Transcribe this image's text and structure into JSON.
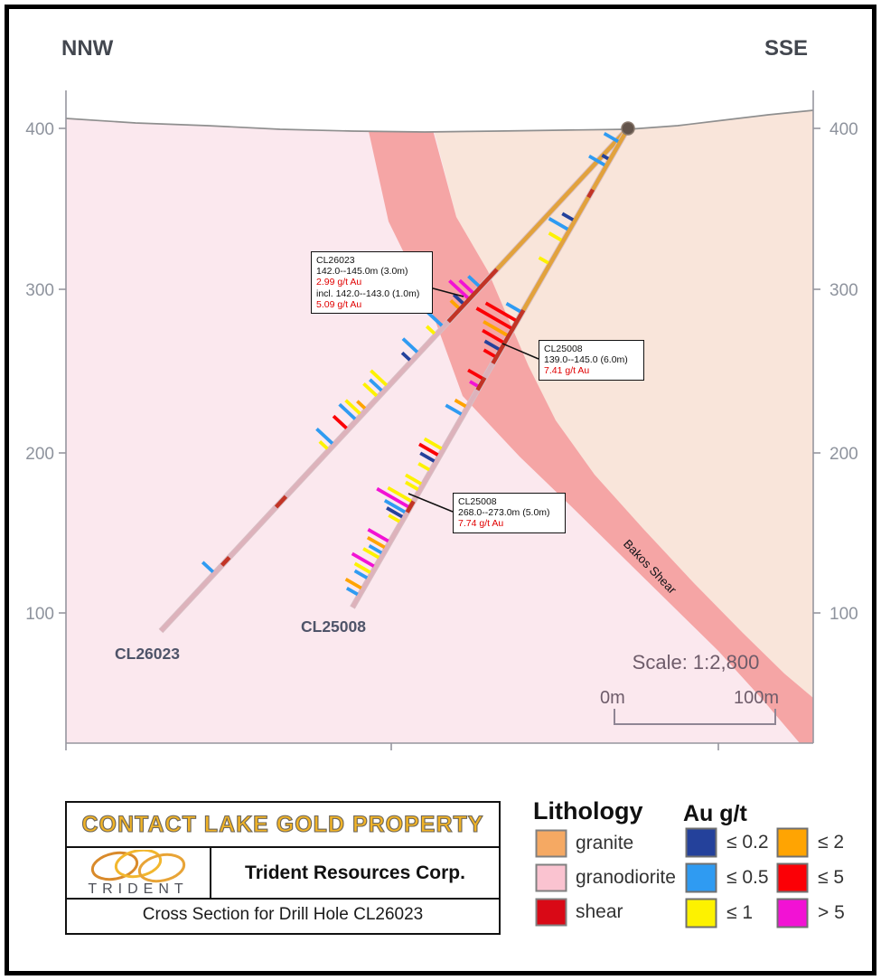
{
  "orientation": {
    "left": "NNW",
    "right": "SSE"
  },
  "axis": {
    "ticks": [
      "400",
      "300",
      "200",
      "100"
    ]
  },
  "scalebar": {
    "label": "Scale: 1:2,800",
    "left": "0m",
    "right": "100m"
  },
  "shear_label": "Bakos Shear",
  "colors": {
    "au": {
      "02": "#24419B",
      "05": "#2F9BF2",
      "1": "#FDF200",
      "2": "#FFA402",
      "5": "#FB0006",
      "5p": "#F212D4"
    },
    "lith_trace": {
      "granite": "#E2A23C",
      "granodiorite": "#DDB2BB",
      "shear": "#C23426"
    },
    "lith_bg": {
      "granite": "#F9E5DA",
      "granodiorite": "#FBE8EE",
      "shear_band": "#F5A5A5"
    },
    "annotation_red": "#E00000",
    "title_gold": "#F2B426"
  },
  "section": {
    "holes": [
      {
        "id": "CL26023",
        "collar": [
          695,
          142
        ],
        "end": [
          178,
          698
        ],
        "segments": [
          {
            "s0": 0,
            "s1": 213,
            "lith": "granite"
          },
          {
            "s0": 213,
            "s1": 292,
            "lith": "shear"
          },
          {
            "s0": 292,
            "s1": 556,
            "lith": "granodiorite"
          },
          {
            "s0": 556,
            "s1": 572,
            "lith": "shear"
          },
          {
            "s0": 572,
            "s1": 648,
            "lith": "granodiorite"
          },
          {
            "s0": 648,
            "s1": 660,
            "lith": "shear"
          },
          {
            "s0": 660,
            "s1": 759,
            "lith": "granodiorite"
          }
        ],
        "ticks": [
          [
            240,
            18,
            "05"
          ],
          [
            250,
            22,
            "5p"
          ],
          [
            258,
            30,
            "5p"
          ],
          [
            266,
            16,
            "02"
          ],
          [
            273,
            14,
            "2"
          ],
          [
            300,
            28,
            "05"
          ],
          [
            312,
            14,
            "1"
          ],
          [
            340,
            24,
            "05"
          ],
          [
            352,
            14,
            "02"
          ],
          [
            390,
            26,
            "1"
          ],
          [
            398,
            20,
            "05"
          ],
          [
            406,
            22,
            "1"
          ],
          [
            425,
            14,
            "2"
          ],
          [
            433,
            24,
            "1"
          ],
          [
            441,
            26,
            "05"
          ],
          [
            455,
            22,
            "5"
          ],
          [
            478,
            26,
            "05"
          ],
          [
            486,
            14,
            "1"
          ],
          [
            672,
            18,
            "05"
          ]
        ]
      },
      {
        "id": "CL25008",
        "collar": [
          695,
          142
        ],
        "end": [
          390,
          672
        ],
        "segments": [
          {
            "s0": 0,
            "s1": 78,
            "lith": "granite"
          },
          {
            "s0": 78,
            "s1": 88,
            "lith": "shear"
          },
          {
            "s0": 88,
            "s1": 232,
            "lith": "granite"
          },
          {
            "s0": 232,
            "s1": 300,
            "lith": "shear"
          },
          {
            "s0": 300,
            "s1": 318,
            "lith": "granodiorite"
          },
          {
            "s0": 318,
            "s1": 334,
            "lith": "shear"
          },
          {
            "s0": 334,
            "s1": 476,
            "lith": "granodiorite"
          },
          {
            "s0": 476,
            "s1": 490,
            "lith": "shear"
          },
          {
            "s0": 490,
            "s1": 611,
            "lith": "granodiorite"
          }
        ],
        "ticks": [
          [
            18,
            20,
            "05"
          ],
          [
            40,
            10,
            "02"
          ],
          [
            48,
            22,
            "05"
          ],
          [
            118,
            16,
            "02"
          ],
          [
            130,
            26,
            "05"
          ],
          [
            144,
            18,
            "1"
          ],
          [
            173,
            14,
            "1"
          ],
          [
            235,
            20,
            "05"
          ],
          [
            246,
            40,
            "5"
          ],
          [
            256,
            46,
            "5"
          ],
          [
            265,
            32,
            "2"
          ],
          [
            274,
            28,
            "5"
          ],
          [
            283,
            20,
            "02"
          ],
          [
            292,
            16,
            "5"
          ],
          [
            320,
            20,
            "5"
          ],
          [
            330,
            12,
            "5p"
          ],
          [
            356,
            16,
            "2"
          ],
          [
            366,
            22,
            "05"
          ],
          [
            410,
            24,
            "1"
          ],
          [
            418,
            26,
            "5"
          ],
          [
            426,
            20,
            "02"
          ],
          [
            437,
            16,
            "1"
          ],
          [
            455,
            22,
            "1"
          ],
          [
            462,
            18,
            "1"
          ],
          [
            477,
            32,
            "1"
          ],
          [
            484,
            42,
            "5p"
          ],
          [
            491,
            28,
            "05"
          ],
          [
            497,
            22,
            "02"
          ],
          [
            503,
            16,
            "1"
          ],
          [
            528,
            28,
            "5p"
          ],
          [
            536,
            24,
            "2"
          ],
          [
            543,
            18,
            "05"
          ],
          [
            549,
            22,
            "1"
          ],
          [
            560,
            30,
            "5p"
          ],
          [
            568,
            22,
            "1"
          ],
          [
            575,
            18,
            "05"
          ],
          [
            588,
            22,
            "2"
          ],
          [
            596,
            16,
            "05"
          ]
        ]
      }
    ],
    "hole_labels": [
      "CL26023",
      "CL25008"
    ]
  },
  "callouts": [
    {
      "lines": [
        "CL26023",
        "142.0--145.0m (3.0m)",
        "2.99 g/t Au",
        "incl. 142.0--143.0 (1.0m)",
        "5.09 g/t Au"
      ]
    },
    {
      "lines": [
        "CL25008",
        "139.0--145.0 (6.0m)",
        "7.41 g/t Au"
      ]
    },
    {
      "lines": [
        "CL25008",
        "268.0--273.0m (5.0m)",
        "7.74 g/t Au"
      ]
    }
  ],
  "legend": {
    "lithology": {
      "title": "Lithology",
      "items": [
        {
          "label": "granite",
          "color": "#F5A963"
        },
        {
          "label": "granodiorite",
          "color": "#FAC3D0"
        },
        {
          "label": "shear",
          "color": "#D90916"
        }
      ]
    },
    "au": {
      "title": "Au g/t",
      "items": [
        {
          "label": "≤ 0.2",
          "color": "#24419B"
        },
        {
          "label": "≤ 0.5",
          "color": "#2F9BF2"
        },
        {
          "label": "≤ 1",
          "color": "#FDF200"
        },
        {
          "label": "≤ 2",
          "color": "#FFA402"
        },
        {
          "label": "≤ 5",
          "color": "#FB0006"
        },
        {
          "label": "> 5",
          "color": "#F212D4"
        }
      ]
    }
  },
  "title_block": {
    "property": "CONTACT LAKE GOLD PROPERTY",
    "logo_text": "TRIDENT",
    "company": "Trident Resources Corp.",
    "caption": "Cross Section for Drill Hole CL26023"
  }
}
